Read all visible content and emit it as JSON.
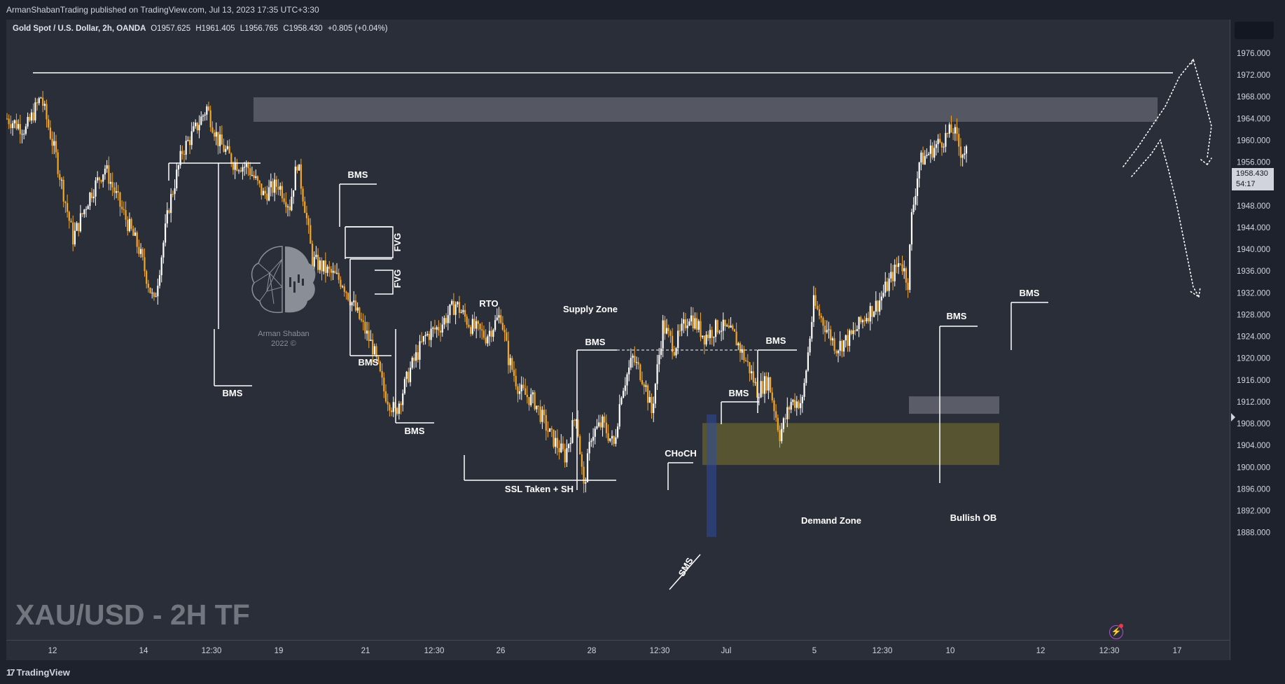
{
  "header": {
    "published": "ArmanShabanTrading published on TradingView.com, Jul 13, 2023 17:35 UTC+3:30"
  },
  "legend": {
    "symbol": "Gold Spot / U.S. Dollar, 2h, OANDA",
    "open": "O1957.625",
    "high": "H1961.405",
    "low": "L1956.765",
    "close": "C1958.430",
    "change": "+0.805 (+0.04%)"
  },
  "price_tag": {
    "price": "1958.430",
    "countdown": "54:17"
  },
  "watermark": "XAU/USD - 2H TF",
  "branding": {
    "name": "Arman Shaban",
    "year": "2022 ©"
  },
  "footer": {
    "logo": "TradingView"
  },
  "colors": {
    "background": "#2a2e39",
    "up": "#ffffff",
    "down": "#f5a623",
    "supply": "#5d6069",
    "demand": "#57552f"
  },
  "chart_data": {
    "type": "candlestick",
    "title": "XAU/USD - 2H TF",
    "ylim": [
      1884,
      1980
    ],
    "y_ticks": [
      "1976.000",
      "1972.000",
      "1968.000",
      "1964.000",
      "1960.000",
      "1956.000",
      "1952.000",
      "1948.000",
      "1944.000",
      "1940.000",
      "1936.000",
      "1932.000",
      "1928.000",
      "1924.000",
      "1920.000",
      "1916.000",
      "1912.000",
      "1908.000",
      "1904.000",
      "1900.000",
      "1896.000",
      "1892.000",
      "1888.000"
    ],
    "x_ticks": [
      "12",
      "14",
      "12:30",
      "19",
      "21",
      "12:30",
      "26",
      "28",
      "12:30",
      "Jul",
      "5",
      "12:30",
      "10",
      "12",
      "12:30",
      "17"
    ],
    "annotations": [
      "BMS",
      "BMS",
      "FVG",
      "FVG",
      "BMS",
      "BMS",
      "RTO",
      "Supply Zone",
      "BMS",
      "SSL Taken + SH",
      "BMS",
      "CHoCH",
      "BMS",
      "SMS",
      "Demand Zone",
      "BMS",
      "BMS",
      "Bullish OB"
    ],
    "zones": [
      {
        "name": "Supply Zone",
        "from": 1963.4,
        "to": 1967.9
      },
      {
        "name": "Demand Zone",
        "from": 1900.4,
        "to": 1908.1
      },
      {
        "name": "Bullish OB",
        "from": 1909.8,
        "to": 1913.0
      }
    ],
    "resistance_level": 1972.4,
    "waypoints": [
      [
        0,
        1964
      ],
      [
        10,
        1962
      ],
      [
        18,
        1968
      ],
      [
        26,
        1957
      ],
      [
        35,
        1942
      ],
      [
        44,
        1950
      ],
      [
        52,
        1955
      ],
      [
        60,
        1948
      ],
      [
        70,
        1940
      ],
      [
        78,
        1930
      ],
      [
        86,
        1948
      ],
      [
        93,
        1958
      ],
      [
        100,
        1962
      ],
      [
        106,
        1966
      ],
      [
        112,
        1960
      ],
      [
        120,
        1956
      ],
      [
        128,
        1955
      ],
      [
        136,
        1950
      ],
      [
        144,
        1952
      ],
      [
        150,
        1948
      ],
      [
        154,
        1956
      ],
      [
        158,
        1948
      ],
      [
        162,
        1938
      ],
      [
        170,
        1936
      ],
      [
        178,
        1934
      ],
      [
        186,
        1928
      ],
      [
        194,
        1922
      ],
      [
        200,
        1914
      ],
      [
        206,
        1910
      ],
      [
        214,
        1918
      ],
      [
        222,
        1924
      ],
      [
        230,
        1926
      ],
      [
        238,
        1930
      ],
      [
        246,
        1926
      ],
      [
        254,
        1924
      ],
      [
        262,
        1928
      ],
      [
        266,
        1920
      ],
      [
        272,
        1914
      ],
      [
        280,
        1912
      ],
      [
        288,
        1906
      ],
      [
        296,
        1902
      ],
      [
        302,
        1910
      ],
      [
        306,
        1896
      ],
      [
        310,
        1906
      ],
      [
        316,
        1908
      ],
      [
        322,
        1904
      ],
      [
        326,
        1914
      ],
      [
        332,
        1920
      ],
      [
        338,
        1916
      ],
      [
        342,
        1910
      ],
      [
        348,
        1926
      ],
      [
        354,
        1922
      ],
      [
        362,
        1928
      ],
      [
        370,
        1924
      ],
      [
        378,
        1926
      ],
      [
        386,
        1924
      ],
      [
        394,
        1918
      ],
      [
        398,
        1914
      ],
      [
        404,
        1916
      ],
      [
        410,
        1906
      ],
      [
        416,
        1912
      ],
      [
        422,
        1912
      ],
      [
        428,
        1930
      ],
      [
        434,
        1926
      ],
      [
        440,
        1922
      ],
      [
        448,
        1924
      ],
      [
        456,
        1928
      ],
      [
        462,
        1930
      ],
      [
        468,
        1934
      ],
      [
        474,
        1938
      ],
      [
        478,
        1934
      ],
      [
        480,
        1946
      ],
      [
        484,
        1956
      ],
      [
        490,
        1958
      ],
      [
        496,
        1960
      ],
      [
        502,
        1962
      ],
      [
        506,
        1958
      ]
    ],
    "n_bars": 510
  }
}
